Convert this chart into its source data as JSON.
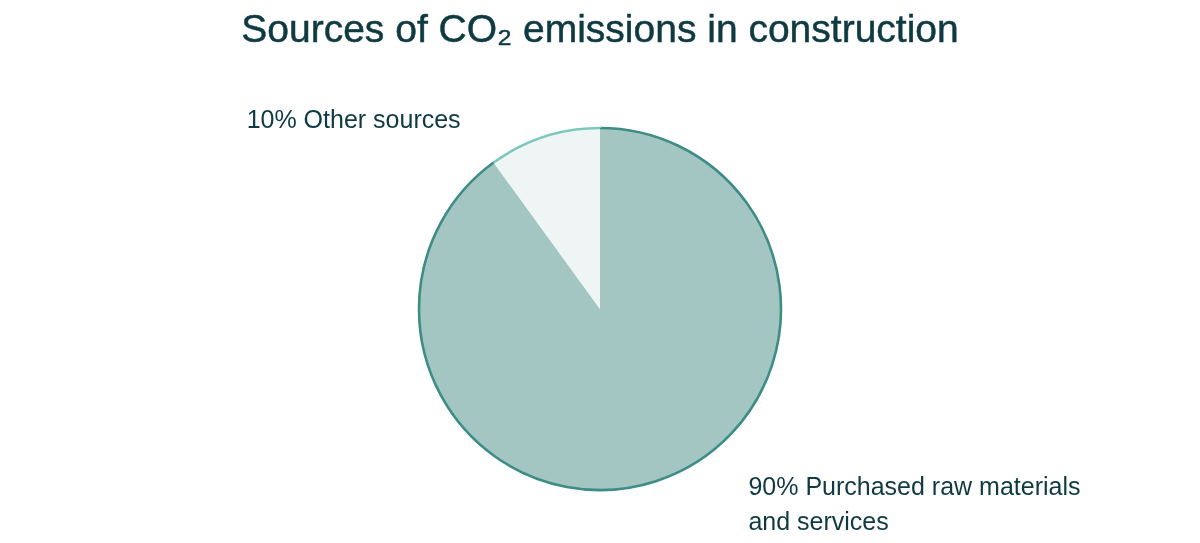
{
  "chart_data": {
    "type": "pie",
    "title": "Sources of CO₂ emissions in construction",
    "categories": [
      "Purchased raw materials and services",
      "Other sources"
    ],
    "values": [
      90,
      10
    ],
    "colors": [
      "#a3c6c3",
      "#eef5f4"
    ],
    "value_labels": [
      "90%",
      "10%"
    ]
  }
}
